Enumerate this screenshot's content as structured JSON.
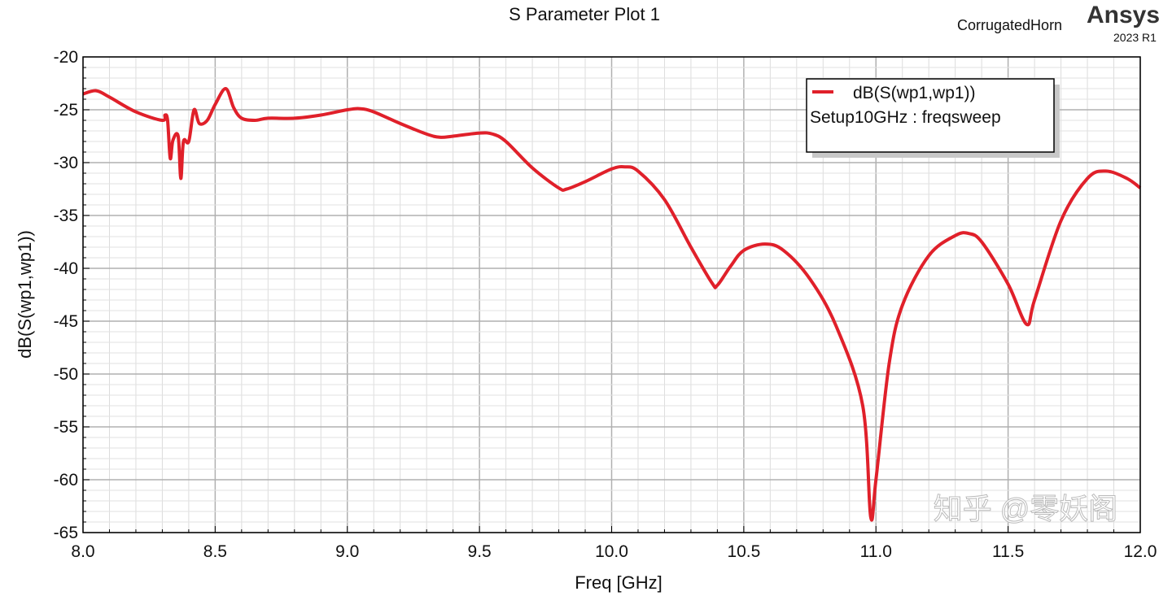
{
  "chart_data": {
    "type": "line",
    "title": "S Parameter Plot 1",
    "project": "CorrugatedHorn",
    "brand": "Ansys",
    "version": "2023 R1",
    "xlabel": "Freq [GHz]",
    "ylabel": "dB(S(wp1,wp1))",
    "xlim": [
      8.0,
      12.0
    ],
    "ylim": [
      -65,
      -20
    ],
    "xticks": [
      "8.0",
      "8.5",
      "9.0",
      "9.5",
      "10.0",
      "10.5",
      "11.0",
      "11.5",
      "12.0"
    ],
    "yticks": [
      "-20",
      "-25",
      "-30",
      "-35",
      "-40",
      "-45",
      "-50",
      "-55",
      "-60",
      "-65"
    ],
    "grid": true,
    "legend_position": "top-right",
    "watermark": "知乎 @零妖阁",
    "series": [
      {
        "name": "dB(S(wp1,wp1))",
        "setup": "Setup10GHz : freqsweep",
        "color": "#e0202a",
        "x": [
          8.0,
          8.05,
          8.1,
          8.2,
          8.3,
          8.31,
          8.32,
          8.33,
          8.34,
          8.36,
          8.37,
          8.38,
          8.4,
          8.42,
          8.44,
          8.47,
          8.5,
          8.54,
          8.57,
          8.6,
          8.65,
          8.7,
          8.8,
          8.9,
          9.0,
          9.05,
          9.1,
          9.2,
          9.3,
          9.35,
          9.4,
          9.5,
          9.55,
          9.6,
          9.7,
          9.8,
          9.83,
          9.9,
          10.0,
          10.05,
          10.1,
          10.2,
          10.3,
          10.38,
          10.4,
          10.45,
          10.5,
          10.58,
          10.65,
          10.75,
          10.85,
          10.95,
          10.98,
          11.0,
          11.05,
          11.1,
          11.2,
          11.3,
          11.35,
          11.4,
          11.5,
          11.57,
          11.6,
          11.7,
          11.8,
          11.87,
          11.95,
          12.0
        ],
        "y": [
          -23.5,
          -23.2,
          -23.8,
          -25.2,
          -26.0,
          -25.5,
          -26,
          -29.6,
          -27.9,
          -27.5,
          -31.5,
          -28,
          -28,
          -25,
          -26.3,
          -26,
          -24.5,
          -23,
          -24.8,
          -25.8,
          -26,
          -25.8,
          -25.8,
          -25.5,
          -25,
          -24.9,
          -25.2,
          -26.3,
          -27.3,
          -27.6,
          -27.5,
          -27.2,
          -27.3,
          -28,
          -30.5,
          -32.4,
          -32.5,
          -31.8,
          -30.6,
          -30.4,
          -30.8,
          -33.5,
          -38,
          -41.4,
          -41.6,
          -39.8,
          -38.3,
          -37.7,
          -38.3,
          -41,
          -45.5,
          -53,
          -63.5,
          -60,
          -49,
          -43.5,
          -38.8,
          -36.9,
          -36.7,
          -37.5,
          -41.5,
          -45.3,
          -43,
          -35.5,
          -31.5,
          -30.8,
          -31.5,
          -32.4
        ]
      }
    ]
  }
}
